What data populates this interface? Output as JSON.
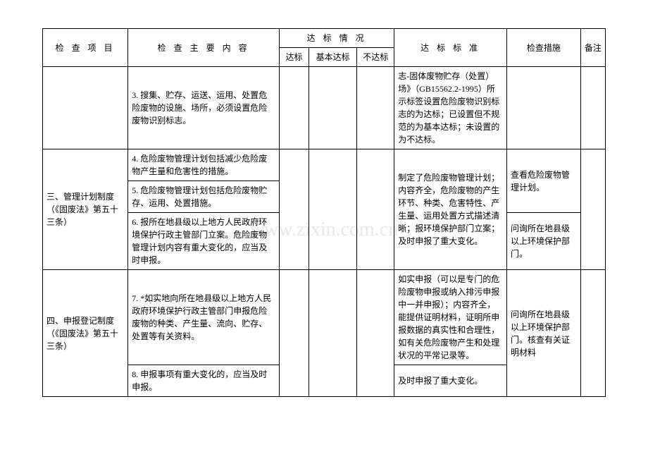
{
  "watermark": "www.zixin.com.cn",
  "headers": {
    "item": "检 查 项 目",
    "content": "检 查 主 要 内 容",
    "status_group": "达 标 情 况",
    "status_dabiao": "达标",
    "status_jiben": "基本达标",
    "status_budabiao": "不达标",
    "standard": "达 标 标 准",
    "measure": "检查措施",
    "note": "备注"
  },
  "rows": [
    {
      "item": "",
      "content": "3. 搜集、贮存、运送、运用、处置危险废物的设施、场所，必须设置危险废物识别标志。",
      "standard": "志-固体废物贮存（处置）场》（GB15562.2-1995）所示标签设置危险废物识别标志的为达标；已设置但不规范的为基本达标；未设置的为不达标。",
      "measure": "",
      "note": ""
    },
    {
      "item": "三、管理计划制度（《固废法》第五十三条）",
      "content_4": "4. 危险废物管理计划包括减少危险废物产生量和危害性的措施。",
      "content_5": "5. 危险废物管理计划包括危险废物贮存、运用、处置措施。",
      "content_6": "6. 报所在地县级以上地方人民政府环境保护行政主管部门立案。危险废物管理计划内容有重大变化的，应当及时申报。",
      "standard": "制定了危险废物管理计划；内容齐全，危险废物的产生环节、种类、危害特性、产生量、运用处置方式描述清晰；报环境保护部门立案；及时申报了重大变化。",
      "measure_1": "查看危险废物管理计划。",
      "measure_2": "问询所在地县级以上环境保护部门。",
      "note": ""
    },
    {
      "item": "四、申报登记制度（《固废法》第五十三条）",
      "content_7": "7. *如实地向所在地县级以上地方人民政府环境保护行政主管部门申报危险废物的种类、产生量、流向、贮存、处置等有关资料。",
      "content_8": "8. 申报事项有重大变化的，应当及时申报。",
      "standard_1": "如实申报（可以是专门的危险废物申报或纳入排污申报中一并申报）；内容齐全，能提供证明材料，证明所申报数据的真实性和合理性，如有关危险废物产生和处理状况的平常记录等。",
      "standard_2": "及时申报了重大变化。",
      "measure": "问询所在地县级以上环境保护部门。核查有关证明材料",
      "note": ""
    }
  ]
}
